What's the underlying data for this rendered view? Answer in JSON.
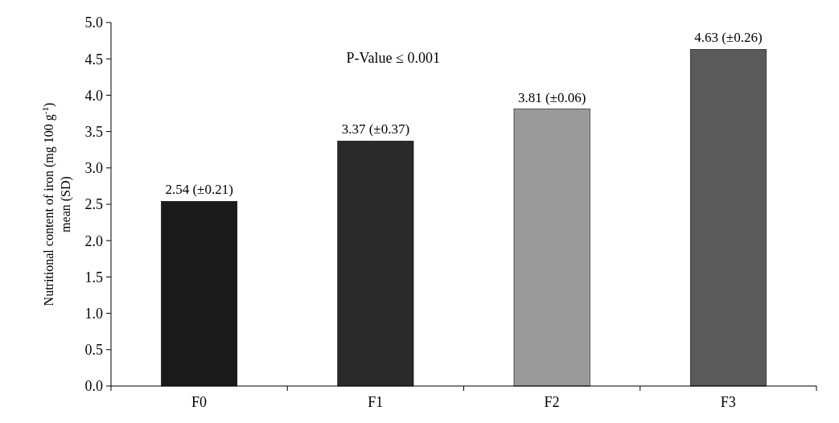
{
  "chart_data": {
    "type": "bar",
    "ylabel": "Nutritional content of iron (mg 100 g$^{-1}$) mean (SD)",
    "categories": [
      "F0",
      "F1",
      "F2",
      "F3"
    ],
    "values": [
      2.54,
      3.37,
      3.81,
      4.63
    ],
    "colors": [
      "#1a1a1a",
      "#2a2a2a",
      "#9a9a9a",
      "#5a5a5a"
    ],
    "value_labels": [
      "2.54 (±0.21)",
      "3.37 (±0.37)",
      "3.81 (±0.06)",
      "4.63 (±0.26)"
    ],
    "annotations": [
      "P-Value ≤ 0.001"
    ],
    "ylim": [
      0,
      5
    ],
    "yticks": [
      {
        "value": 0,
        "label": "0.0"
      },
      {
        "value": 0.5,
        "label": "0.5"
      },
      {
        "value": 1,
        "label": "1.0"
      },
      {
        "value": 1.5,
        "label": "1.5"
      },
      {
        "value": 2,
        "label": "2.0"
      },
      {
        "value": 2.5,
        "label": "2.5"
      },
      {
        "value": 3,
        "label": "3.0"
      },
      {
        "value": 3.5,
        "label": "3.5"
      },
      {
        "value": 4,
        "label": "4.0"
      },
      {
        "value": 4.5,
        "label": "4.5"
      },
      {
        "value": 5,
        "label": "5.0"
      }
    ],
    "grid": false
  }
}
